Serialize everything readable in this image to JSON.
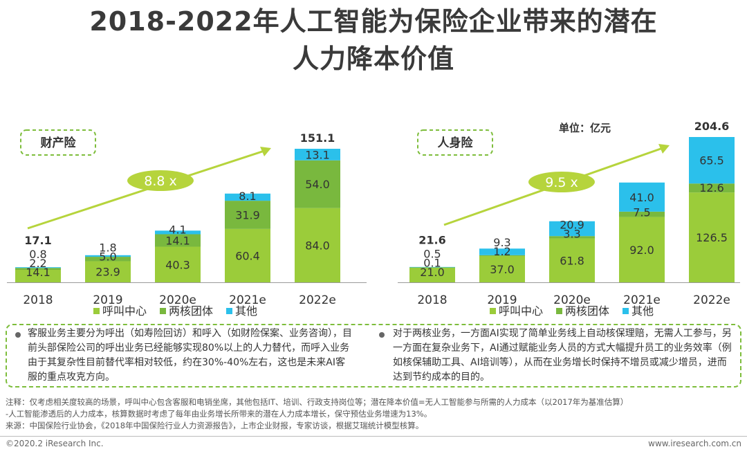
{
  "title": {
    "line1": "2018-2022年人工智能为保险企业带来的潜在",
    "line2": "人力降本价值"
  },
  "unit_label": "单位：亿元",
  "legend": [
    "呼叫中心",
    "两核团体",
    "其他"
  ],
  "colors": {
    "call_center": "#9bcc3a",
    "core": "#79b83e",
    "other": "#2bc0eb",
    "accent": "#b6d43c",
    "box": "#7dbd3b"
  },
  "chart_data": [
    {
      "type": "bar",
      "stacked": true,
      "title": "财产险",
      "growth_label": "8.8 x",
      "categories": [
        "2018",
        "2019",
        "2020e",
        "2021e",
        "2022e"
      ],
      "series": [
        {
          "name": "呼叫中心",
          "values": [
            14.1,
            23.9,
            40.3,
            60.4,
            84.0
          ],
          "labels": [
            "14.1",
            "23.9",
            "40.3",
            "60.4",
            "84.0"
          ]
        },
        {
          "name": "两核团体",
          "values": [
            2.2,
            5.0,
            14.1,
            31.9,
            54.0
          ],
          "labels": [
            "2.2",
            "5.0",
            "14.1",
            "31.9",
            "54.0"
          ]
        },
        {
          "name": "其他",
          "values": [
            0.8,
            1.8,
            4.1,
            8.1,
            13.1
          ],
          "labels": [
            "0.8",
            "1.8",
            "4.1",
            "8.1",
            "13.1"
          ]
        }
      ],
      "totals": [
        "17.1",
        "",
        "",
        "",
        "151.1"
      ],
      "ylim": [
        0,
        151.1
      ]
    },
    {
      "type": "bar",
      "stacked": true,
      "title": "人身险",
      "growth_label": "9.5 x",
      "categories": [
        "2018",
        "2019",
        "2020e",
        "2021e",
        "2022e"
      ],
      "series": [
        {
          "name": "呼叫中心",
          "values": [
            21.0,
            37.0,
            61.8,
            92.0,
            126.5
          ],
          "labels": [
            "21.0",
            "37.0",
            "61.8",
            "92.0",
            "126.5"
          ]
        },
        {
          "name": "两核团体",
          "values": [
            0.1,
            1.2,
            3.3,
            7.5,
            12.6
          ],
          "labels": [
            "0.1",
            "1.2",
            "3.3",
            "7.5",
            "12.6"
          ]
        },
        {
          "name": "其他",
          "values": [
            0.5,
            9.3,
            20.9,
            41.0,
            65.5
          ],
          "labels": [
            "0.5",
            "9.3",
            "20.9",
            "41.0",
            "65.5"
          ]
        }
      ],
      "totals": [
        "21.6",
        "",
        "",
        "",
        "204.6"
      ],
      "ylim": [
        0,
        204.6
      ]
    }
  ],
  "notes": {
    "left": "客服业务主要分为呼出（如寿险回访）和呼入（如财险保案、业务咨询），目前头部保险公司的呼出业务已经能够实现80%以上的人力替代，而呼入业务由于其复杂性目前替代率相对较低，约在30%-40%左右，这也是未来AI客服的重点攻克方向。",
    "right": "对于两核业务，一方面AI实现了简单业务线上自动核保理赔，无需人工参与，另一方面在复杂业务下，AI通过赋能业务人员的方式大幅提升员工的业务效率（例如核保辅助工具、AI培训等），从而在业务增长时保持不增员或减少增员，进而达到节约成本的目的。"
  },
  "footnotes": {
    "note_line1": "注释：仅考虑相关度较高的场景，呼叫中心包含客服和电销坐席，其他包括IT、培训、行政支持岗位等；潜在降本价值=无人工智能参与所需的人力成本（以2017年为基准估算）",
    "note_line2": "-人工智能渗透后的人力成本，核算数据时考虑了每年由业务增长所带来的潜在人力成本增长，保守预估业务增速为13%。",
    "source": "来源：中国保险行业协会，《2018年中国保险行业人力资源报告》，上市企业财报，专家访谈，根据艾瑞统计模型核算。"
  },
  "footer": {
    "copyright": "©2020.2 iResearch Inc.",
    "website": "www.iresearch.com.cn"
  }
}
